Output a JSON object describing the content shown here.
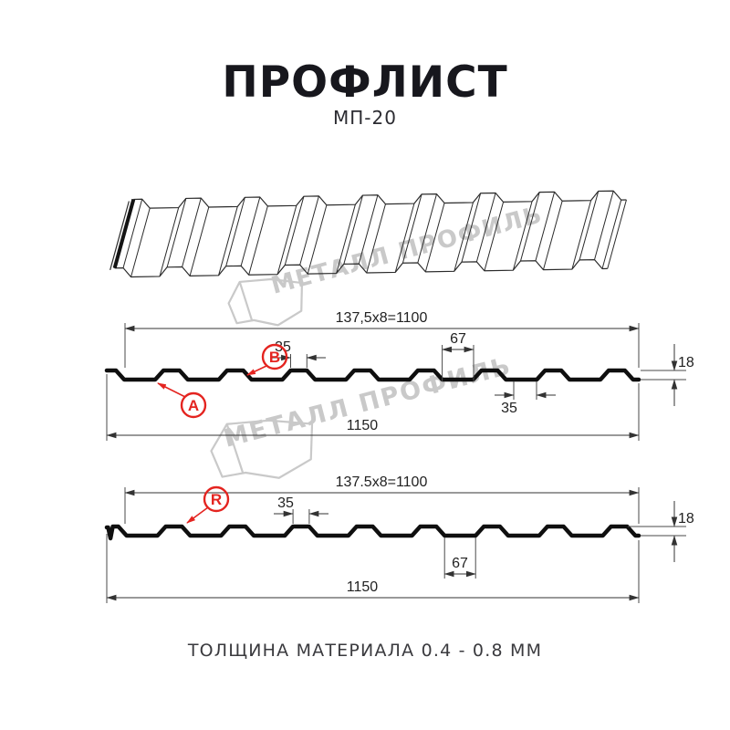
{
  "header": {
    "title": "ПРОФЛИСТ",
    "subtitle": "МП-20"
  },
  "watermarks": {
    "text": "МЕТАЛЛ ПРОФИЛЬ"
  },
  "section_top": {
    "total_pitch": "137,5x8=1100",
    "rib_top_width": "35",
    "valley_width": "67",
    "height": "18",
    "rib_bottom_width": "35",
    "overall_width": "1150",
    "marker_a": "A",
    "marker_b": "B"
  },
  "section_bottom": {
    "total_pitch": "137.5x8=1100",
    "rib_top_width": "35",
    "valley_width": "67",
    "height": "18",
    "overall_width": "1150",
    "marker_r": "R"
  },
  "footer": {
    "text": "ТОЛЩИНА МАТЕРИАЛА 0.4 - 0.8 ММ"
  },
  "colors": {
    "accent_red": "#e42420",
    "line_dark": "#0f0f0f",
    "dim_line": "#333333",
    "watermark_gray": "#c9c9c9"
  }
}
